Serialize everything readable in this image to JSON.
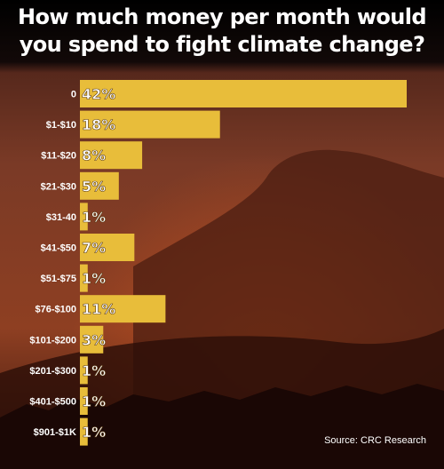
{
  "chart_data": {
    "type": "bar",
    "orientation": "horizontal",
    "title_line1": "How much money per month would",
    "title_line2": "you spend to fight climate change?",
    "categories": [
      "0",
      "$1-$10",
      "$11-$20",
      "$21-$30",
      "$31-40",
      "$41-$50",
      "$51-$75",
      "$76-$100",
      "$101-$200",
      "$201-$300",
      "$401-$500",
      "$901-$1K"
    ],
    "values": [
      42,
      18,
      8,
      5,
      1,
      7,
      1,
      11,
      3,
      1,
      1,
      1
    ],
    "value_labels": [
      "42%",
      "18%",
      "8%",
      "5%",
      "1%",
      "7%",
      "1%",
      "11%",
      "3%",
      "1%",
      "1%",
      "1%"
    ],
    "xlim": [
      0,
      42
    ],
    "grid": false,
    "legend": "none",
    "source": "Source: CRC Research",
    "colors": {
      "bar": "#e8bd3a",
      "text": "#ffffff",
      "bar_label": "#ffffff"
    }
  }
}
